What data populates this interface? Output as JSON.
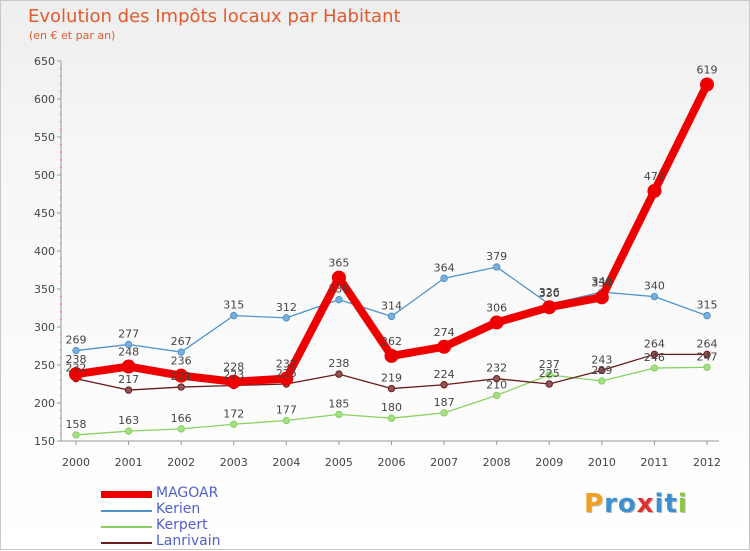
{
  "chart_data": {
    "type": "line",
    "title": "Evolution des Impôts locaux par Habitant",
    "subtitle": "(en € et par an)",
    "xlabel": "",
    "ylabel": "",
    "x": [
      "2000",
      "2001",
      "2002",
      "2003",
      "2004",
      "2005",
      "2006",
      "2007",
      "2008",
      "2009",
      "2010",
      "2011",
      "2012"
    ],
    "ylim": [
      150,
      650
    ],
    "yticks": [
      150,
      200,
      250,
      300,
      350,
      400,
      450,
      500,
      550,
      600,
      650
    ],
    "grid": false,
    "legend_position": "bottom-left",
    "series": [
      {
        "name": "Kerpert",
        "color": "#88d25f",
        "values": [
          158,
          163,
          166,
          172,
          177,
          185,
          180,
          187,
          210,
          237,
          229,
          246,
          247
        ],
        "labels": [
          "158",
          "163",
          "166",
          "172",
          "177",
          "185",
          "180",
          "187",
          "210",
          "237",
          "229",
          "246",
          "247"
        ]
      },
      {
        "name": "Lanrivain",
        "color": "#6b1c1c",
        "values": [
          232,
          217,
          221,
          223,
          225,
          238,
          219,
          224,
          232,
          225,
          243,
          264,
          264
        ],
        "labels": [
          "232",
          "217",
          "221",
          "223",
          "225",
          "238",
          "219",
          "224",
          "232",
          "225",
          "243",
          "264",
          "264"
        ]
      },
      {
        "name": "Kerien",
        "color": "#4f94cd",
        "values": [
          269,
          277,
          267,
          315,
          312,
          336,
          314,
          364,
          379,
          330,
          346,
          340,
          315
        ],
        "labels": [
          "269",
          "277",
          "267",
          "315",
          "312",
          "336",
          "314",
          "364",
          "379",
          "330",
          "346",
          "340",
          "315"
        ]
      },
      {
        "name": "MAGOAR",
        "color": "#ee0000",
        "values": [
          238,
          248,
          236,
          228,
          232,
          365,
          262,
          274,
          306,
          326,
          339,
          479,
          619
        ],
        "labels": [
          "238",
          "248",
          "236",
          "228",
          "232",
          "365",
          "262",
          "274",
          "306",
          "326",
          "339",
          "479",
          "619"
        ]
      }
    ],
    "legend_order": [
      "MAGOAR",
      "Kerien",
      "Kerpert",
      "Lanrivain"
    ]
  },
  "brand": {
    "text": "Proxiti",
    "letters": [
      "P",
      "r",
      "o",
      "x",
      "i",
      "t",
      "i"
    ],
    "colors": [
      "#f0a020",
      "#3c8fd0",
      "#3c8fd0",
      "#e03030",
      "#3c8fd0",
      "#3c8fd0",
      "#8cc63f"
    ]
  }
}
